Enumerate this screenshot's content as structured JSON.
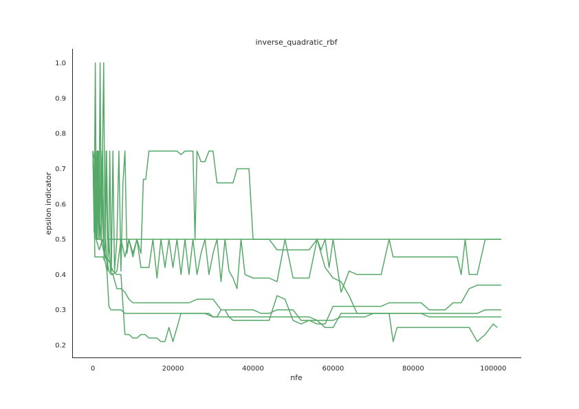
{
  "chart_data": {
    "type": "line",
    "title": "inverse_quadratic_rbf",
    "xlabel": "nfe",
    "ylabel": "epsilon indicator",
    "xlim": [
      -5000,
      107000
    ],
    "ylim": [
      0.165,
      1.04
    ],
    "xticks": [
      0,
      20000,
      40000,
      60000,
      80000,
      100000
    ],
    "xtick_labels": [
      "0",
      "20000",
      "40000",
      "60000",
      "80000",
      "100000"
    ],
    "yticks": [
      0.2,
      0.3,
      0.4,
      0.5,
      0.6,
      0.7,
      0.8,
      0.9,
      1.0
    ],
    "ytick_labels": [
      "0.2",
      "0.3",
      "0.4",
      "0.5",
      "0.6",
      "0.7",
      "0.8",
      "0.9",
      "1.0"
    ],
    "grid": false,
    "legend": "none",
    "color": "#55a868",
    "series": [
      {
        "x": [
          0,
          300,
          600,
          900,
          1200,
          1500,
          1800,
          2100,
          2400,
          2700,
          3000,
          3300,
          3600,
          4000,
          12000,
          25000,
          40000,
          60000,
          80000,
          100000,
          102000
        ],
        "y": [
          0.75,
          0.52,
          1.0,
          0.5,
          0.75,
          0.5,
          1.0,
          0.5,
          0.75,
          1.0,
          0.5,
          0.75,
          0.5,
          0.5,
          0.5,
          0.5,
          0.5,
          0.5,
          0.5,
          0.5,
          0.5
        ]
      },
      {
        "x": [
          0,
          500,
          800,
          1100,
          1400,
          1600,
          2000,
          2600,
          3000,
          3400,
          3800,
          4000,
          4200,
          4600,
          5000,
          5400,
          6000,
          6500,
          7000,
          7500,
          8000,
          8500,
          9000,
          10000,
          11000,
          12000,
          12600,
          13200,
          14000,
          15500,
          16000,
          18000,
          20000,
          21000,
          22000,
          23000,
          24000,
          25000,
          25500,
          26000,
          27000,
          28000,
          29000,
          30000,
          31000,
          32000,
          33000,
          35000,
          36000,
          37000,
          38000,
          39000,
          40000,
          42000,
          44000,
          46000,
          48000,
          50000,
          52000,
          54000,
          56000,
          57000,
          58000,
          59000,
          60000,
          62000,
          64000,
          66000,
          68000,
          70000,
          72000,
          73000,
          74000,
          75000,
          77000,
          80000,
          82000,
          84000,
          86000,
          88000,
          90000,
          91000,
          92000,
          93000,
          94000,
          96000,
          98000,
          100000,
          102000
        ],
        "y": [
          0.72,
          0.75,
          0.55,
          0.75,
          0.55,
          0.5,
          0.75,
          0.5,
          0.45,
          0.75,
          0.45,
          0.5,
          0.75,
          0.41,
          0.75,
          0.41,
          0.5,
          0.75,
          0.41,
          0.66,
          0.75,
          0.46,
          0.5,
          0.46,
          0.5,
          0.46,
          0.67,
          0.67,
          0.75,
          0.75,
          0.75,
          0.75,
          0.75,
          0.75,
          0.74,
          0.75,
          0.75,
          0.75,
          0.5,
          0.75,
          0.72,
          0.72,
          0.75,
          0.75,
          0.66,
          0.66,
          0.66,
          0.66,
          0.7,
          0.7,
          0.7,
          0.7,
          0.5,
          0.5,
          0.5,
          0.47,
          0.47,
          0.47,
          0.47,
          0.47,
          0.5,
          0.47,
          0.5,
          0.42,
          0.5,
          0.35,
          0.41,
          0.4,
          0.4,
          0.4,
          0.4,
          0.45,
          0.5,
          0.45,
          0.45,
          0.45,
          0.45,
          0.45,
          0.45,
          0.45,
          0.45,
          0.45,
          0.4,
          0.5,
          0.4,
          0.4,
          0.5,
          0.5,
          0.5
        ]
      },
      {
        "x": [
          0,
          500,
          800,
          1100,
          1400,
          1700,
          2000,
          2400,
          2800,
          3200,
          3600,
          4000,
          4400,
          5000,
          6000,
          7000,
          8000,
          9000,
          10000,
          11000,
          12000,
          13000,
          14000,
          15000,
          16000,
          17000,
          18000,
          19000,
          20000,
          21000,
          22000,
          23000,
          24000,
          25000,
          26000,
          27000,
          28000,
          29000,
          30000,
          31000,
          32000,
          33000,
          34000,
          35000,
          36000,
          37000,
          38000,
          40000,
          42000,
          44000,
          46000,
          48000,
          50000,
          52000,
          54000,
          56000,
          58000,
          60000,
          62000,
          64000,
          66000,
          68000,
          70000,
          72000,
          74000,
          76000,
          78000,
          80000,
          82000,
          84000,
          86000,
          88000,
          90000,
          92000,
          94000,
          96000,
          98000,
          100000,
          102000
        ],
        "y": [
          0.75,
          0.5,
          0.75,
          0.5,
          0.75,
          0.55,
          0.5,
          0.75,
          0.44,
          0.5,
          0.41,
          0.5,
          0.41,
          0.4,
          0.41,
          0.5,
          0.45,
          0.5,
          0.45,
          0.5,
          0.42,
          0.42,
          0.42,
          0.5,
          0.39,
          0.5,
          0.42,
          0.5,
          0.42,
          0.5,
          0.4,
          0.5,
          0.4,
          0.5,
          0.4,
          0.46,
          0.5,
          0.4,
          0.46,
          0.5,
          0.38,
          0.5,
          0.41,
          0.39,
          0.36,
          0.5,
          0.4,
          0.39,
          0.39,
          0.39,
          0.38,
          0.5,
          0.39,
          0.39,
          0.39,
          0.5,
          0.42,
          0.39,
          0.38,
          0.34,
          0.29,
          0.29,
          0.29,
          0.29,
          0.29,
          0.29,
          0.29,
          0.29,
          0.29,
          0.29,
          0.29,
          0.29,
          0.29,
          0.29,
          0.29,
          0.29,
          0.3,
          0.3,
          0.3
        ]
      },
      {
        "x": [
          0,
          500,
          1000,
          1500,
          2000,
          2500,
          3000,
          3500,
          4000,
          4500,
          5000,
          6000,
          7000,
          8000,
          9000,
          10000,
          11000,
          12000,
          13000,
          14000,
          15000,
          16000,
          18000,
          20000,
          22000,
          24000,
          26000,
          28000,
          30000,
          32000,
          34000,
          36000,
          38000,
          40000,
          42000,
          44000,
          46000,
          48000,
          50000,
          52000,
          54000,
          56000,
          58000,
          60000,
          62000,
          64000,
          66000,
          68000,
          70000,
          72000,
          74000,
          76000,
          78000,
          80000,
          82000,
          84000,
          86000,
          88000,
          90000,
          92000,
          94000,
          96000,
          98000,
          100000,
          102000
        ],
        "y": [
          0.75,
          0.45,
          0.45,
          0.45,
          0.45,
          0.45,
          0.44,
          0.41,
          0.31,
          0.3,
          0.3,
          0.3,
          0.3,
          0.29,
          0.29,
          0.29,
          0.29,
          0.29,
          0.29,
          0.29,
          0.29,
          0.29,
          0.29,
          0.29,
          0.29,
          0.29,
          0.29,
          0.29,
          0.28,
          0.28,
          0.28,
          0.28,
          0.28,
          0.28,
          0.28,
          0.28,
          0.28,
          0.28,
          0.28,
          0.28,
          0.28,
          0.27,
          0.27,
          0.27,
          0.28,
          0.28,
          0.28,
          0.28,
          0.29,
          0.29,
          0.29,
          0.29,
          0.29,
          0.29,
          0.29,
          0.28,
          0.28,
          0.28,
          0.28,
          0.28,
          0.28,
          0.28,
          0.28,
          0.28,
          0.28
        ]
      },
      {
        "x": [
          0,
          1000,
          2000,
          3000,
          3500,
          4000,
          4500,
          5000,
          6000,
          7000,
          8000,
          9000,
          10000,
          12000,
          14000,
          16000,
          18000,
          20000,
          22000,
          24000,
          26000,
          28000,
          30000,
          32000,
          34000,
          36000,
          38000,
          40000,
          42000,
          44000,
          46000,
          48000,
          50000,
          52000,
          54000,
          56000,
          58000,
          60000,
          62000,
          64000,
          66000,
          68000,
          70000,
          72000,
          74000,
          76000,
          78000,
          80000,
          82000,
          84000,
          86000,
          88000,
          90000,
          92000,
          94000,
          96000,
          98000,
          100000,
          102000
        ],
        "y": [
          0.75,
          0.5,
          0.5,
          0.45,
          0.44,
          0.41,
          0.4,
          0.4,
          0.36,
          0.36,
          0.35,
          0.33,
          0.32,
          0.32,
          0.32,
          0.32,
          0.32,
          0.32,
          0.32,
          0.32,
          0.33,
          0.33,
          0.33,
          0.3,
          0.3,
          0.3,
          0.3,
          0.3,
          0.29,
          0.29,
          0.3,
          0.3,
          0.3,
          0.27,
          0.27,
          0.26,
          0.26,
          0.31,
          0.31,
          0.31,
          0.31,
          0.31,
          0.31,
          0.31,
          0.32,
          0.32,
          0.32,
          0.32,
          0.32,
          0.3,
          0.3,
          0.3,
          0.32,
          0.32,
          0.36,
          0.37,
          0.37,
          0.37,
          0.37
        ]
      },
      {
        "x": [
          0,
          800,
          1600,
          2400,
          3200,
          4000,
          5000,
          6000,
          7000,
          8000,
          9000,
          10000,
          11000,
          12000,
          13000,
          14000,
          15000,
          16000,
          17000,
          18000,
          19000,
          20000,
          21000,
          22000,
          23000,
          24000,
          25000,
          26000,
          27000,
          28000,
          29000,
          30000,
          31000,
          32000,
          33000,
          34000,
          35000,
          36000,
          37000,
          38000,
          40000,
          42000,
          44000,
          46000,
          48000,
          50000,
          52000,
          54000,
          56000,
          58000,
          60000,
          62000,
          64000,
          66000,
          68000,
          70000,
          72000,
          74000,
          75000,
          76000,
          78000,
          80000,
          82000,
          84000,
          86000,
          88000,
          90000,
          92000,
          94000,
          96000,
          98000,
          100000,
          101000
        ],
        "y": [
          0.75,
          0.5,
          0.47,
          0.5,
          0.45,
          0.44,
          0.41,
          0.4,
          0.4,
          0.23,
          0.23,
          0.22,
          0.22,
          0.23,
          0.23,
          0.22,
          0.22,
          0.22,
          0.21,
          0.21,
          0.25,
          0.21,
          0.25,
          0.29,
          0.29,
          0.29,
          0.29,
          0.29,
          0.29,
          0.29,
          0.29,
          0.28,
          0.28,
          0.3,
          0.3,
          0.28,
          0.27,
          0.27,
          0.27,
          0.27,
          0.27,
          0.27,
          0.27,
          0.34,
          0.33,
          0.27,
          0.26,
          0.27,
          0.27,
          0.25,
          0.25,
          0.29,
          0.29,
          0.29,
          0.29,
          0.29,
          0.29,
          0.29,
          0.21,
          0.25,
          0.25,
          0.25,
          0.25,
          0.25,
          0.25,
          0.25,
          0.25,
          0.25,
          0.25,
          0.21,
          0.23,
          0.26,
          0.25
        ]
      }
    ]
  }
}
